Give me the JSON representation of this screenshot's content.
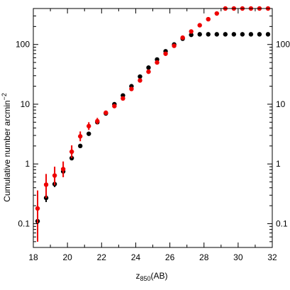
{
  "chart_data": {
    "type": "scatter",
    "title": "",
    "xlabel": {
      "main": "z",
      "sub": "850",
      "tail": "(AB)"
    },
    "ylabel": {
      "main": "Cumulative number arcmin",
      "sup": "−2"
    },
    "xlim": [
      18,
      32
    ],
    "ylim": [
      0.04,
      400
    ],
    "yscale": "log",
    "x_ticks": [
      18,
      20,
      22,
      24,
      26,
      28,
      30,
      32
    ],
    "y_ticks": [
      {
        "value": 0.1,
        "label": "0.1"
      },
      {
        "value": 1,
        "label": "1"
      },
      {
        "value": 10,
        "label": "10"
      },
      {
        "value": 100,
        "label": "100"
      }
    ],
    "grid": false,
    "series": [
      {
        "color": "#000000",
        "points": [
          {
            "x": 18.25,
            "y": 0.11,
            "ylo": 0.08,
            "yhi": 0.14
          },
          {
            "x": 18.75,
            "y": 0.27,
            "ylo": 0.23,
            "yhi": 0.31
          },
          {
            "x": 19.25,
            "y": 0.46,
            "ylo": 0.41,
            "yhi": 0.51
          },
          {
            "x": 19.75,
            "y": 0.75,
            "ylo": 0.69,
            "yhi": 0.81
          },
          {
            "x": 20.25,
            "y": 1.25,
            "ylo": 1.18,
            "yhi": 1.32
          },
          {
            "x": 20.75,
            "y": 2.0
          },
          {
            "x": 21.25,
            "y": 3.2
          },
          {
            "x": 21.75,
            "y": 5.0
          },
          {
            "x": 22.25,
            "y": 7.0
          },
          {
            "x": 22.75,
            "y": 10.0
          },
          {
            "x": 23.25,
            "y": 14.0
          },
          {
            "x": 23.75,
            "y": 20.0
          },
          {
            "x": 24.25,
            "y": 29.0
          },
          {
            "x": 24.75,
            "y": 41.0
          },
          {
            "x": 25.25,
            "y": 56.0
          },
          {
            "x": 25.75,
            "y": 77.0
          },
          {
            "x": 26.25,
            "y": 100.0
          },
          {
            "x": 26.75,
            "y": 125.0
          },
          {
            "x": 27.25,
            "y": 145.0
          },
          {
            "x": 27.75,
            "y": 148.0
          },
          {
            "x": 28.25,
            "y": 148.0
          },
          {
            "x": 28.75,
            "y": 148.0
          },
          {
            "x": 29.25,
            "y": 148.0
          },
          {
            "x": 29.75,
            "y": 148.0
          },
          {
            "x": 30.25,
            "y": 148.0
          },
          {
            "x": 30.75,
            "y": 148.0
          },
          {
            "x": 31.25,
            "y": 148.0
          },
          {
            "x": 31.75,
            "y": 148.0
          }
        ]
      },
      {
        "color": "#ee0000",
        "points": [
          {
            "x": 18.25,
            "y": 0.18,
            "ylo": 0.05,
            "yhi": 0.36
          },
          {
            "x": 18.75,
            "y": 0.45,
            "ylo": 0.27,
            "yhi": 0.68
          },
          {
            "x": 19.25,
            "y": 0.64,
            "ylo": 0.44,
            "yhi": 0.9
          },
          {
            "x": 19.75,
            "y": 0.82,
            "ylo": 0.6,
            "yhi": 1.1
          },
          {
            "x": 20.25,
            "y": 1.6,
            "ylo": 1.25,
            "yhi": 2.05
          },
          {
            "x": 20.75,
            "y": 2.9,
            "ylo": 2.4,
            "yhi": 3.5
          },
          {
            "x": 21.25,
            "y": 4.3,
            "ylo": 3.7,
            "yhi": 5.0
          },
          {
            "x": 21.75,
            "y": 5.2,
            "ylo": 4.6,
            "yhi": 5.9
          },
          {
            "x": 22.25,
            "y": 7.2
          },
          {
            "x": 22.75,
            "y": 9.3
          },
          {
            "x": 23.25,
            "y": 12.5
          },
          {
            "x": 23.75,
            "y": 18.0
          },
          {
            "x": 24.25,
            "y": 25.0
          },
          {
            "x": 24.75,
            "y": 35.0
          },
          {
            "x": 25.25,
            "y": 50.0
          },
          {
            "x": 25.75,
            "y": 70.0
          },
          {
            "x": 26.25,
            "y": 95.0
          },
          {
            "x": 26.75,
            "y": 130.0
          },
          {
            "x": 27.25,
            "y": 165.0
          },
          {
            "x": 27.75,
            "y": 210.0
          },
          {
            "x": 28.25,
            "y": 265.0
          },
          {
            "x": 28.75,
            "y": 330.0
          },
          {
            "x": 29.25,
            "y": 400.0
          },
          {
            "x": 29.75,
            "y": 470.0
          },
          {
            "x": 30.25,
            "y": 540.0
          },
          {
            "x": 30.75,
            "y": 590.0
          },
          {
            "x": 31.25,
            "y": 620.0
          },
          {
            "x": 31.75,
            "y": 630.0
          }
        ]
      }
    ]
  }
}
